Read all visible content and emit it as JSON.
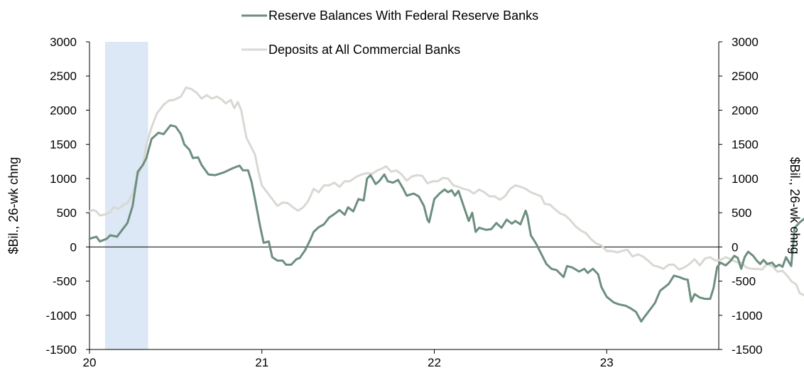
{
  "chart_data": {
    "type": "line",
    "ylabel_left": "$Bil., 26-wk chng",
    "ylabel_right": "$Bil., 26-wk chng",
    "ylim": [
      -1500,
      3000
    ],
    "yticks": [
      "3000",
      "2500",
      "2000",
      "1500",
      "1000",
      "500",
      "0",
      "-500",
      "-1000",
      "-1500"
    ],
    "yticks_right": [
      "3000",
      "2500",
      "2000",
      "1500",
      "1000",
      "500",
      "0",
      "-500",
      "-1000",
      "-1500"
    ],
    "xlim": [
      2020.0,
      2023.65
    ],
    "xticks": [
      {
        "value": 2020,
        "label": "20"
      },
      {
        "value": 2021,
        "label": "21"
      },
      {
        "value": 2022,
        "label": "22"
      },
      {
        "value": 2023,
        "label": "23"
      }
    ],
    "recession_shading": {
      "start": 2020.09,
      "end": 2020.34
    },
    "zero_line": true,
    "grid": false,
    "legend_position": "top-center",
    "series": [
      {
        "name": "Reserve Balances With Federal Reserve Banks",
        "color": "#6d8e7f",
        "points": [
          [
            2020.0,
            120
          ],
          [
            2020.04,
            150
          ],
          [
            2020.06,
            80
          ],
          [
            2020.1,
            120
          ],
          [
            2020.12,
            170
          ],
          [
            2020.16,
            150
          ],
          [
            2020.19,
            250
          ],
          [
            2020.22,
            350
          ],
          [
            2020.25,
            600
          ],
          [
            2020.28,
            1100
          ],
          [
            2020.31,
            1200
          ],
          [
            2020.33,
            1300
          ],
          [
            2020.36,
            1580
          ],
          [
            2020.4,
            1670
          ],
          [
            2020.43,
            1650
          ],
          [
            2020.47,
            1780
          ],
          [
            2020.5,
            1760
          ],
          [
            2020.53,
            1650
          ],
          [
            2020.55,
            1500
          ],
          [
            2020.58,
            1420
          ],
          [
            2020.6,
            1300
          ],
          [
            2020.63,
            1310
          ],
          [
            2020.65,
            1200
          ],
          [
            2020.69,
            1060
          ],
          [
            2020.73,
            1050
          ],
          [
            2020.78,
            1090
          ],
          [
            2020.83,
            1150
          ],
          [
            2020.87,
            1190
          ],
          [
            2020.89,
            1120
          ],
          [
            2020.92,
            1120
          ],
          [
            2020.94,
            950
          ],
          [
            2020.96,
            700
          ],
          [
            2020.99,
            300
          ],
          [
            2021.01,
            60
          ],
          [
            2021.04,
            80
          ],
          [
            2021.06,
            -150
          ],
          [
            2021.09,
            -200
          ],
          [
            2021.12,
            -200
          ],
          [
            2021.14,
            -260
          ],
          [
            2021.17,
            -260
          ],
          [
            2021.2,
            -180
          ],
          [
            2021.22,
            -160
          ],
          [
            2021.25,
            -50
          ],
          [
            2021.28,
            100
          ],
          [
            2021.3,
            220
          ],
          [
            2021.33,
            290
          ],
          [
            2021.36,
            330
          ],
          [
            2021.39,
            430
          ],
          [
            2021.42,
            480
          ],
          [
            2021.45,
            540
          ],
          [
            2021.48,
            470
          ],
          [
            2021.5,
            580
          ],
          [
            2021.53,
            520
          ],
          [
            2021.56,
            700
          ],
          [
            2021.59,
            680
          ],
          [
            2021.61,
            1000
          ],
          [
            2021.63,
            1050
          ],
          [
            2021.66,
            920
          ],
          [
            2021.68,
            960
          ],
          [
            2021.71,
            1060
          ],
          [
            2021.73,
            960
          ],
          [
            2021.76,
            940
          ],
          [
            2021.79,
            980
          ],
          [
            2021.82,
            850
          ],
          [
            2021.84,
            750
          ],
          [
            2021.88,
            780
          ],
          [
            2021.91,
            740
          ],
          [
            2021.94,
            600
          ],
          [
            2021.96,
            400
          ],
          [
            2021.97,
            360
          ],
          [
            2022.0,
            700
          ],
          [
            2022.03,
            780
          ],
          [
            2022.06,
            840
          ],
          [
            2022.08,
            800
          ],
          [
            2022.1,
            830
          ],
          [
            2022.12,
            750
          ],
          [
            2022.14,
            820
          ],
          [
            2022.17,
            600
          ],
          [
            2022.2,
            380
          ],
          [
            2022.22,
            500
          ],
          [
            2022.24,
            220
          ],
          [
            2022.26,
            280
          ],
          [
            2022.3,
            250
          ],
          [
            2022.33,
            260
          ],
          [
            2022.36,
            350
          ],
          [
            2022.39,
            280
          ],
          [
            2022.42,
            400
          ],
          [
            2022.45,
            340
          ],
          [
            2022.47,
            380
          ],
          [
            2022.5,
            330
          ],
          [
            2022.53,
            530
          ],
          [
            2022.54,
            450
          ],
          [
            2022.56,
            170
          ],
          [
            2022.59,
            50
          ],
          [
            2022.62,
            -100
          ],
          [
            2022.65,
            -250
          ],
          [
            2022.68,
            -320
          ],
          [
            2022.71,
            -340
          ],
          [
            2022.75,
            -440
          ],
          [
            2022.77,
            -280
          ],
          [
            2022.8,
            -300
          ],
          [
            2022.84,
            -360
          ],
          [
            2022.87,
            -320
          ],
          [
            2022.89,
            -380
          ],
          [
            2022.92,
            -320
          ],
          [
            2022.95,
            -400
          ],
          [
            2022.97,
            -590
          ],
          [
            2023.0,
            -730
          ],
          [
            2023.04,
            -810
          ],
          [
            2023.07,
            -840
          ],
          [
            2023.11,
            -860
          ],
          [
            2023.14,
            -900
          ],
          [
            2023.17,
            -950
          ],
          [
            2023.2,
            -1090
          ],
          [
            2023.22,
            -1020
          ],
          [
            2023.25,
            -920
          ],
          [
            2023.28,
            -820
          ],
          [
            2023.31,
            -640
          ],
          [
            2023.34,
            -580
          ],
          [
            2023.36,
            -540
          ],
          [
            2023.39,
            -420
          ],
          [
            2023.42,
            -440
          ],
          [
            2023.45,
            -470
          ],
          [
            2023.47,
            -480
          ],
          [
            2023.49,
            -800
          ],
          [
            2023.51,
            -690
          ],
          [
            2023.54,
            -740
          ],
          [
            2023.57,
            -760
          ],
          [
            2023.6,
            -760
          ],
          [
            2023.62,
            -600
          ],
          [
            2023.64,
            -300
          ],
          [
            2023.66,
            -230
          ],
          [
            2023.69,
            -270
          ],
          [
            2023.72,
            -200
          ],
          [
            2023.74,
            -130
          ],
          [
            2023.76,
            -160
          ],
          [
            2023.78,
            -320
          ],
          [
            2023.8,
            -150
          ],
          [
            2023.82,
            -70
          ],
          [
            2023.85,
            -130
          ],
          [
            2023.87,
            -200
          ],
          [
            2023.89,
            -250
          ],
          [
            2023.91,
            -190
          ],
          [
            2023.93,
            -250
          ],
          [
            2023.96,
            -230
          ],
          [
            2023.98,
            -290
          ],
          [
            2024.0,
            -260
          ],
          [
            2024.02,
            -290
          ],
          [
            2024.04,
            -150
          ],
          [
            2024.07,
            -280
          ],
          [
            2024.09,
            280
          ],
          [
            2024.12,
            360
          ],
          [
            2024.15,
            420
          ],
          [
            2024.18,
            300
          ]
        ]
      },
      {
        "name": "Deposits at All Commercial Banks",
        "color": "#d9d8d3",
        "points": [
          [
            2020.0,
            520
          ],
          [
            2020.02,
            540
          ],
          [
            2020.04,
            520
          ],
          [
            2020.06,
            460
          ],
          [
            2020.1,
            480
          ],
          [
            2020.12,
            510
          ],
          [
            2020.14,
            580
          ],
          [
            2020.17,
            560
          ],
          [
            2020.2,
            620
          ],
          [
            2020.22,
            640
          ],
          [
            2020.25,
            780
          ],
          [
            2020.28,
            1050
          ],
          [
            2020.31,
            1200
          ],
          [
            2020.33,
            1500
          ],
          [
            2020.36,
            1750
          ],
          [
            2020.39,
            1950
          ],
          [
            2020.43,
            2080
          ],
          [
            2020.46,
            2140
          ],
          [
            2020.49,
            2150
          ],
          [
            2020.53,
            2200
          ],
          [
            2020.56,
            2330
          ],
          [
            2020.59,
            2310
          ],
          [
            2020.62,
            2260
          ],
          [
            2020.65,
            2170
          ],
          [
            2020.68,
            2220
          ],
          [
            2020.71,
            2170
          ],
          [
            2020.74,
            2200
          ],
          [
            2020.77,
            2150
          ],
          [
            2020.79,
            2100
          ],
          [
            2020.82,
            2150
          ],
          [
            2020.84,
            2030
          ],
          [
            2020.86,
            2120
          ],
          [
            2020.88,
            2000
          ],
          [
            2020.91,
            1600
          ],
          [
            2020.94,
            1450
          ],
          [
            2020.96,
            1350
          ],
          [
            2020.98,
            1100
          ],
          [
            2021.0,
            900
          ],
          [
            2021.03,
            800
          ],
          [
            2021.06,
            700
          ],
          [
            2021.09,
            600
          ],
          [
            2021.12,
            650
          ],
          [
            2021.15,
            640
          ],
          [
            2021.18,
            580
          ],
          [
            2021.21,
            530
          ],
          [
            2021.24,
            580
          ],
          [
            2021.27,
            680
          ],
          [
            2021.3,
            850
          ],
          [
            2021.33,
            800
          ],
          [
            2021.36,
            900
          ],
          [
            2021.39,
            900
          ],
          [
            2021.42,
            940
          ],
          [
            2021.45,
            880
          ],
          [
            2021.48,
            960
          ],
          [
            2021.51,
            960
          ],
          [
            2021.55,
            1030
          ],
          [
            2021.58,
            1060
          ],
          [
            2021.61,
            1080
          ],
          [
            2021.64,
            1070
          ],
          [
            2021.67,
            1120
          ],
          [
            2021.7,
            1150
          ],
          [
            2021.72,
            1180
          ],
          [
            2021.75,
            1100
          ],
          [
            2021.78,
            1120
          ],
          [
            2021.81,
            1060
          ],
          [
            2021.84,
            970
          ],
          [
            2021.87,
            1030
          ],
          [
            2021.9,
            1050
          ],
          [
            2021.93,
            1040
          ],
          [
            2021.96,
            930
          ],
          [
            2021.99,
            960
          ],
          [
            2022.02,
            960
          ],
          [
            2022.05,
            1010
          ],
          [
            2022.08,
            1000
          ],
          [
            2022.11,
            900
          ],
          [
            2022.14,
            880
          ],
          [
            2022.17,
            850
          ],
          [
            2022.2,
            830
          ],
          [
            2022.23,
            780
          ],
          [
            2022.26,
            840
          ],
          [
            2022.29,
            800
          ],
          [
            2022.32,
            740
          ],
          [
            2022.35,
            740
          ],
          [
            2022.38,
            690
          ],
          [
            2022.41,
            740
          ],
          [
            2022.44,
            850
          ],
          [
            2022.47,
            900
          ],
          [
            2022.5,
            880
          ],
          [
            2022.53,
            850
          ],
          [
            2022.56,
            800
          ],
          [
            2022.59,
            770
          ],
          [
            2022.62,
            740
          ],
          [
            2022.64,
            630
          ],
          [
            2022.67,
            620
          ],
          [
            2022.7,
            550
          ],
          [
            2022.73,
            490
          ],
          [
            2022.76,
            460
          ],
          [
            2022.79,
            390
          ],
          [
            2022.82,
            300
          ],
          [
            2022.85,
            240
          ],
          [
            2022.88,
            200
          ],
          [
            2022.91,
            110
          ],
          [
            2022.94,
            50
          ],
          [
            2022.97,
            20
          ],
          [
            2023.0,
            -60
          ],
          [
            2023.03,
            -60
          ],
          [
            2023.06,
            -80
          ],
          [
            2023.09,
            -60
          ],
          [
            2023.12,
            -40
          ],
          [
            2023.15,
            -140
          ],
          [
            2023.18,
            -110
          ],
          [
            2023.21,
            -140
          ],
          [
            2023.24,
            -200
          ],
          [
            2023.27,
            -270
          ],
          [
            2023.3,
            -290
          ],
          [
            2023.33,
            -320
          ],
          [
            2023.36,
            -260
          ],
          [
            2023.39,
            -260
          ],
          [
            2023.42,
            -330
          ],
          [
            2023.45,
            -300
          ],
          [
            2023.48,
            -250
          ],
          [
            2023.51,
            -180
          ],
          [
            2023.54,
            -270
          ],
          [
            2023.57,
            -170
          ],
          [
            2023.6,
            -150
          ],
          [
            2023.63,
            -200
          ],
          [
            2023.66,
            -190
          ],
          [
            2023.69,
            -150
          ],
          [
            2023.72,
            -180
          ],
          [
            2023.75,
            -220
          ],
          [
            2023.78,
            -230
          ],
          [
            2023.81,
            -300
          ],
          [
            2023.84,
            -320
          ],
          [
            2023.87,
            -320
          ],
          [
            2023.9,
            -330
          ],
          [
            2023.93,
            -250
          ],
          [
            2023.96,
            -280
          ],
          [
            2023.99,
            -360
          ],
          [
            2024.02,
            -350
          ],
          [
            2024.05,
            -430
          ],
          [
            2024.07,
            -500
          ],
          [
            2024.1,
            -550
          ],
          [
            2024.12,
            -680
          ],
          [
            2024.15,
            -710
          ]
        ]
      }
    ]
  }
}
